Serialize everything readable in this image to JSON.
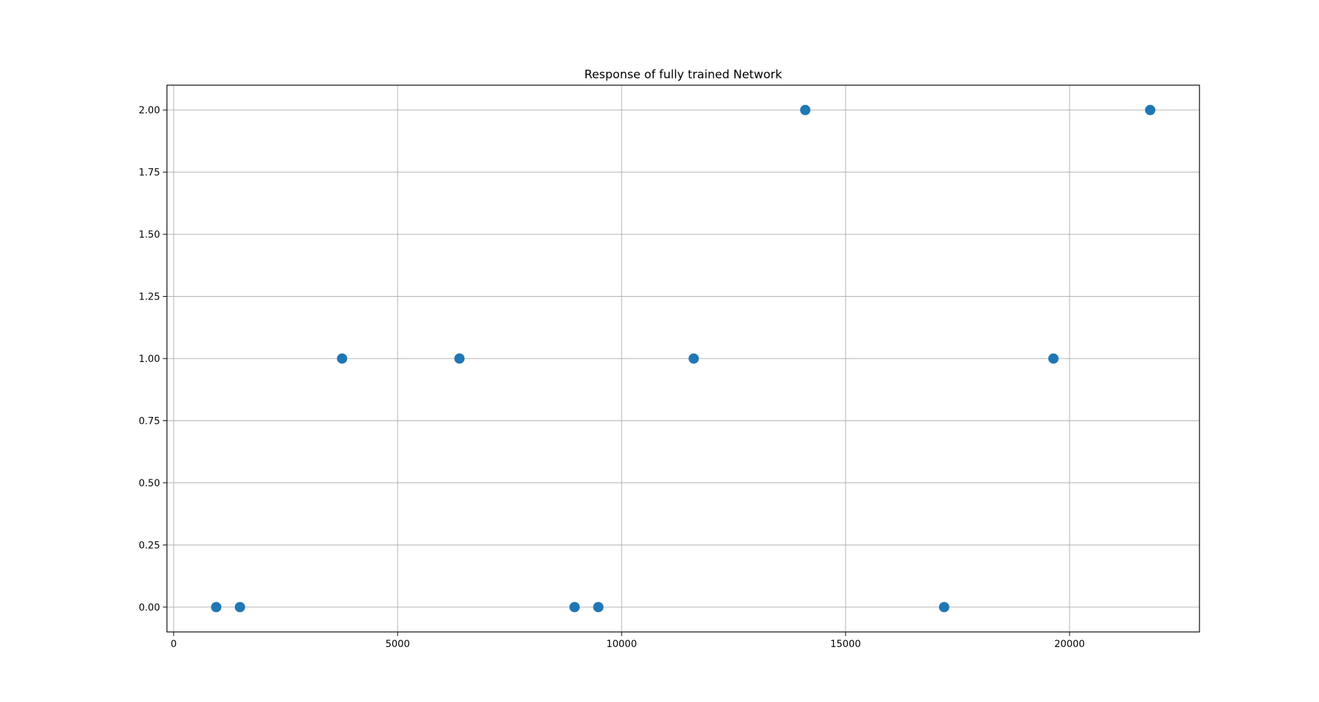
{
  "chart_data": {
    "type": "scatter",
    "title": "Response of fully trained Network",
    "xlabel": "",
    "ylabel": "",
    "xlim": [
      -150,
      22900
    ],
    "ylim": [
      -0.1,
      2.1
    ],
    "x_ticks": [
      0,
      5000,
      10000,
      15000,
      20000
    ],
    "x_tick_labels": [
      "0",
      "5000",
      "10000",
      "15000",
      "20000"
    ],
    "y_ticks": [
      0.0,
      0.25,
      0.5,
      0.75,
      1.0,
      1.25,
      1.5,
      1.75,
      2.0
    ],
    "y_tick_labels": [
      "0.00",
      "0.25",
      "0.50",
      "0.75",
      "1.00",
      "1.25",
      "1.50",
      "1.75",
      "2.00"
    ],
    "grid": true,
    "legend": "none",
    "marker_color": "#1f77b4",
    "points": [
      {
        "x": 950,
        "y": 0
      },
      {
        "x": 1480,
        "y": 0
      },
      {
        "x": 3760,
        "y": 1
      },
      {
        "x": 6380,
        "y": 1
      },
      {
        "x": 8950,
        "y": 0
      },
      {
        "x": 9480,
        "y": 0
      },
      {
        "x": 11610,
        "y": 1
      },
      {
        "x": 14100,
        "y": 2
      },
      {
        "x": 17200,
        "y": 0
      },
      {
        "x": 19640,
        "y": 1
      },
      {
        "x": 21800,
        "y": 2
      }
    ]
  }
}
